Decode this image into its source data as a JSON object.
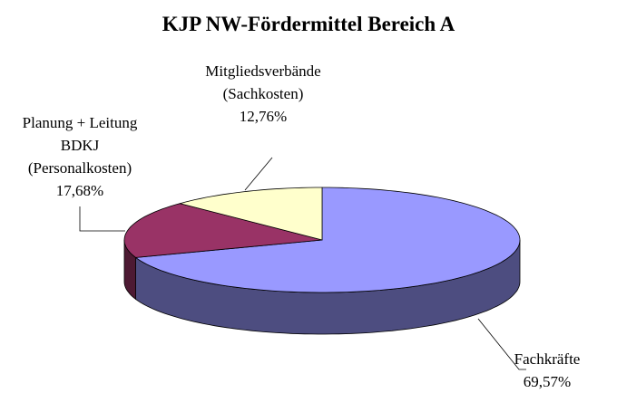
{
  "chart_data": {
    "type": "pie",
    "title": "KJP NW-Fördermittel Bereich A",
    "categories": [
      "Fachkräfte",
      "Planung + Leitung BDKJ (Personalkosten)",
      "Mitgliedsverbände (Sachkosten)"
    ],
    "values": [
      69.57,
      17.68,
      12.76
    ],
    "value_labels": [
      "69,57%",
      "17,68%",
      "12,76%"
    ],
    "colors": [
      "#9999ff",
      "#993366",
      "#ffffcc"
    ],
    "three_d": true
  }
}
